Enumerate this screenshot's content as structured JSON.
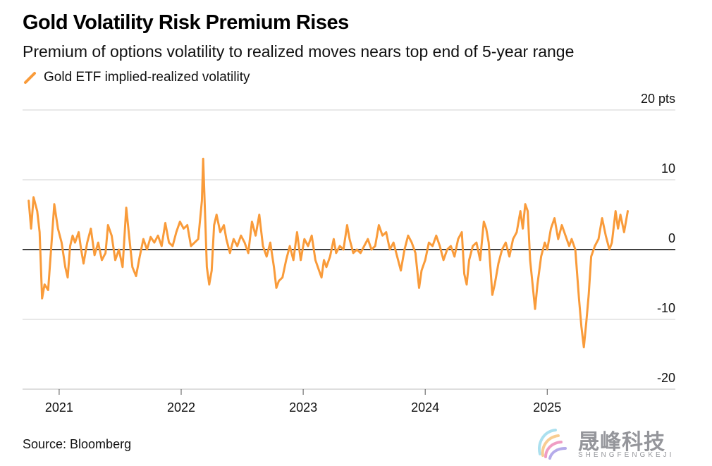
{
  "chart_data": {
    "type": "line",
    "title": "Gold Volatility Risk Premium Rises",
    "subtitle": "Premium of options volatility to realized moves nears top end of 5-year range",
    "legend": [
      "Gold ETF implied-realized volatility"
    ],
    "source": "Source: Bloomberg",
    "x_tick_labels": [
      "2021",
      "2022",
      "2023",
      "2024",
      "2025"
    ],
    "x_ticks": [
      2021,
      2022,
      2023,
      2024,
      2025
    ],
    "xlim": [
      2020.7,
      2026.05
    ],
    "y_ticks": [
      20,
      10,
      0,
      -10,
      -20
    ],
    "y_tick_labels": [
      "20 pts",
      "10",
      "0",
      "-10",
      "-20"
    ],
    "ylim": [
      -20,
      20
    ],
    "series": [
      {
        "name": "Gold ETF implied-realized volatility",
        "color": "#F99B3A",
        "points": [
          [
            2020.75,
            7.0
          ],
          [
            2020.77,
            3.0
          ],
          [
            2020.79,
            7.5
          ],
          [
            2020.82,
            5.5
          ],
          [
            2020.84,
            2.5
          ],
          [
            2020.86,
            -7.0
          ],
          [
            2020.88,
            -5.0
          ],
          [
            2020.91,
            -5.8
          ],
          [
            2020.94,
            1.5
          ],
          [
            2020.96,
            6.5
          ],
          [
            2020.99,
            3.0
          ],
          [
            2021.02,
            1.0
          ],
          [
            2021.05,
            -2.5
          ],
          [
            2021.07,
            -4.0
          ],
          [
            2021.09,
            0.5
          ],
          [
            2021.11,
            2.0
          ],
          [
            2021.13,
            1.0
          ],
          [
            2021.16,
            2.5
          ],
          [
            2021.18,
            0.0
          ],
          [
            2021.2,
            -2.0
          ],
          [
            2021.23,
            1.0
          ],
          [
            2021.26,
            3.0
          ],
          [
            2021.29,
            -0.8
          ],
          [
            2021.32,
            1.0
          ],
          [
            2021.35,
            -1.5
          ],
          [
            2021.38,
            -0.5
          ],
          [
            2021.4,
            3.5
          ],
          [
            2021.43,
            2.0
          ],
          [
            2021.46,
            -1.5
          ],
          [
            2021.49,
            0.0
          ],
          [
            2021.52,
            -2.5
          ],
          [
            2021.55,
            6.0
          ],
          [
            2021.57,
            2.5
          ],
          [
            2021.6,
            -2.5
          ],
          [
            2021.63,
            -3.8
          ],
          [
            2021.66,
            -1.0
          ],
          [
            2021.69,
            1.5
          ],
          [
            2021.72,
            0.0
          ],
          [
            2021.75,
            1.8
          ],
          [
            2021.78,
            1.0
          ],
          [
            2021.81,
            2.0
          ],
          [
            2021.84,
            0.5
          ],
          [
            2021.87,
            3.8
          ],
          [
            2021.9,
            1.0
          ],
          [
            2021.93,
            0.5
          ],
          [
            2021.96,
            2.5
          ],
          [
            2021.99,
            4.0
          ],
          [
            2022.02,
            3.0
          ],
          [
            2022.05,
            3.5
          ],
          [
            2022.08,
            0.5
          ],
          [
            2022.11,
            1.0
          ],
          [
            2022.14,
            1.5
          ],
          [
            2022.17,
            7.0
          ],
          [
            2022.18,
            13.0
          ],
          [
            2022.2,
            3.0
          ],
          [
            2022.21,
            -2.5
          ],
          [
            2022.23,
            -5.0
          ],
          [
            2022.25,
            -3.0
          ],
          [
            2022.27,
            3.5
          ],
          [
            2022.29,
            5.0
          ],
          [
            2022.32,
            2.5
          ],
          [
            2022.35,
            3.5
          ],
          [
            2022.37,
            1.5
          ],
          [
            2022.4,
            -0.5
          ],
          [
            2022.43,
            1.5
          ],
          [
            2022.46,
            0.5
          ],
          [
            2022.49,
            2.0
          ],
          [
            2022.52,
            1.0
          ],
          [
            2022.55,
            -0.5
          ],
          [
            2022.58,
            4.0
          ],
          [
            2022.61,
            2.0
          ],
          [
            2022.64,
            5.0
          ],
          [
            2022.67,
            0.5
          ],
          [
            2022.7,
            -1.0
          ],
          [
            2022.73,
            1.0
          ],
          [
            2022.76,
            -2.5
          ],
          [
            2022.78,
            -5.5
          ],
          [
            2022.8,
            -4.5
          ],
          [
            2022.83,
            -4.0
          ],
          [
            2022.86,
            -1.5
          ],
          [
            2022.89,
            0.5
          ],
          [
            2022.92,
            -1.5
          ],
          [
            2022.95,
            2.5
          ],
          [
            2022.98,
            -1.5
          ],
          [
            2023.01,
            1.5
          ],
          [
            2023.04,
            0.5
          ],
          [
            2023.07,
            2.0
          ],
          [
            2023.1,
            -1.5
          ],
          [
            2023.13,
            -3.0
          ],
          [
            2023.15,
            -4.0
          ],
          [
            2023.17,
            -1.5
          ],
          [
            2023.19,
            -2.5
          ],
          [
            2023.22,
            -1.0
          ],
          [
            2023.25,
            1.5
          ],
          [
            2023.27,
            -0.5
          ],
          [
            2023.3,
            0.5
          ],
          [
            2023.33,
            0.0
          ],
          [
            2023.36,
            3.5
          ],
          [
            2023.38,
            1.5
          ],
          [
            2023.41,
            -0.5
          ],
          [
            2023.44,
            0.0
          ],
          [
            2023.47,
            -0.5
          ],
          [
            2023.5,
            0.5
          ],
          [
            2023.53,
            1.5
          ],
          [
            2023.56,
            0.0
          ],
          [
            2023.59,
            0.5
          ],
          [
            2023.62,
            3.5
          ],
          [
            2023.65,
            2.0
          ],
          [
            2023.68,
            2.5
          ],
          [
            2023.71,
            0.0
          ],
          [
            2023.74,
            1.0
          ],
          [
            2023.77,
            -1.0
          ],
          [
            2023.8,
            -3.0
          ],
          [
            2023.83,
            0.0
          ],
          [
            2023.86,
            2.0
          ],
          [
            2023.89,
            1.0
          ],
          [
            2023.92,
            -0.5
          ],
          [
            2023.95,
            -5.5
          ],
          [
            2023.97,
            -3.0
          ],
          [
            2024.0,
            -1.5
          ],
          [
            2024.03,
            1.0
          ],
          [
            2024.06,
            0.5
          ],
          [
            2024.09,
            2.0
          ],
          [
            2024.12,
            0.5
          ],
          [
            2024.15,
            -1.5
          ],
          [
            2024.18,
            0.0
          ],
          [
            2024.21,
            0.5
          ],
          [
            2024.24,
            -1.0
          ],
          [
            2024.27,
            1.5
          ],
          [
            2024.3,
            2.5
          ],
          [
            2024.32,
            -3.5
          ],
          [
            2024.34,
            -5.0
          ],
          [
            2024.36,
            -1.5
          ],
          [
            2024.39,
            0.5
          ],
          [
            2024.42,
            1.0
          ],
          [
            2024.45,
            -1.5
          ],
          [
            2024.48,
            4.0
          ],
          [
            2024.5,
            3.0
          ],
          [
            2024.52,
            1.0
          ],
          [
            2024.55,
            -6.5
          ],
          [
            2024.57,
            -5.0
          ],
          [
            2024.6,
            -2.0
          ],
          [
            2024.63,
            0.0
          ],
          [
            2024.66,
            1.0
          ],
          [
            2024.69,
            -1.0
          ],
          [
            2024.72,
            1.5
          ],
          [
            2024.75,
            2.5
          ],
          [
            2024.78,
            5.5
          ],
          [
            2024.8,
            3.0
          ],
          [
            2024.82,
            6.5
          ],
          [
            2024.84,
            5.5
          ],
          [
            2024.86,
            -1.5
          ],
          [
            2024.88,
            -5.0
          ],
          [
            2024.9,
            -8.5
          ],
          [
            2024.92,
            -5.0
          ],
          [
            2024.95,
            -1.0
          ],
          [
            2024.98,
            1.0
          ],
          [
            2025.0,
            0.0
          ],
          [
            2025.03,
            3.0
          ],
          [
            2025.06,
            4.5
          ],
          [
            2025.09,
            1.5
          ],
          [
            2025.12,
            3.5
          ],
          [
            2025.15,
            2.0
          ],
          [
            2025.18,
            0.5
          ],
          [
            2025.2,
            1.5
          ],
          [
            2025.23,
            0.0
          ],
          [
            2025.26,
            -7.0
          ],
          [
            2025.28,
            -11.0
          ],
          [
            2025.3,
            -14.0
          ],
          [
            2025.32,
            -10.5
          ],
          [
            2025.34,
            -6.5
          ],
          [
            2025.36,
            -1.0
          ],
          [
            2025.39,
            0.5
          ],
          [
            2025.42,
            1.5
          ],
          [
            2025.45,
            4.5
          ],
          [
            2025.48,
            2.0
          ],
          [
            2025.51,
            0.0
          ],
          [
            2025.53,
            1.0
          ],
          [
            2025.56,
            5.5
          ],
          [
            2025.58,
            3.0
          ],
          [
            2025.6,
            5.0
          ],
          [
            2025.63,
            2.5
          ],
          [
            2025.66,
            5.5
          ]
        ]
      }
    ]
  }
}
